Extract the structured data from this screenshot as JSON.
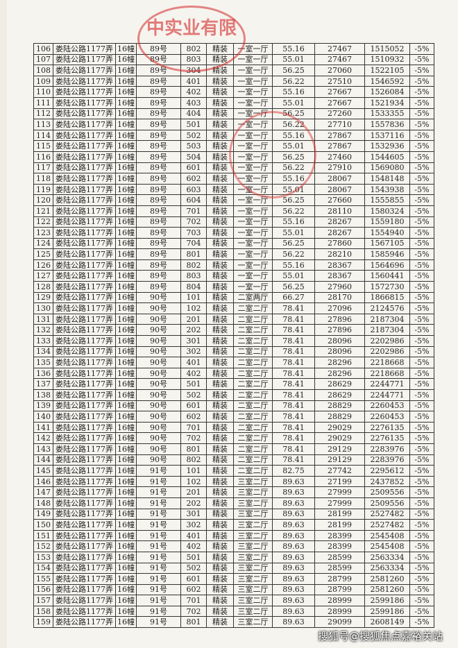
{
  "stamp": "中实业有限",
  "watermark": "搜狐号@搜狐焦点嘉裕关站",
  "table": {
    "rows": [
      [
        "106",
        "娄陆公路1177弄",
        "16幢",
        "89号",
        "802",
        "精装",
        "一室一厅",
        "55.16",
        "27467",
        "1515052",
        "-5%"
      ],
      [
        "107",
        "娄陆公路1177弄",
        "16幢",
        "89号",
        "803",
        "精装",
        "一室一厅",
        "55.01",
        "27467",
        "1510932",
        "-5%"
      ],
      [
        "108",
        "娄陆公路1177弄",
        "16幢",
        "89号",
        "304",
        "精装",
        "一室一厅",
        "56.25",
        "27060",
        "1522105",
        "-5%"
      ],
      [
        "109",
        "娄陆公路1177弄",
        "16幢",
        "89号",
        "401",
        "精装",
        "一室一厅",
        "56.22",
        "27510",
        "1546592",
        "-5%"
      ],
      [
        "110",
        "娄陆公路1177弄",
        "16幢",
        "89号",
        "402",
        "精装",
        "一室一厅",
        "55.16",
        "27667",
        "1526084",
        "-5%"
      ],
      [
        "111",
        "娄陆公路1177弄",
        "16幢",
        "89号",
        "403",
        "精装",
        "一室一厅",
        "55.01",
        "27667",
        "1521934",
        "-5%"
      ],
      [
        "112",
        "娄陆公路1177弄",
        "16幢",
        "89号",
        "404",
        "精装",
        "一室一厅",
        "56.25",
        "27260",
        "1533355",
        "-5%"
      ],
      [
        "113",
        "娄陆公路1177弄",
        "16幢",
        "89号",
        "501",
        "精装",
        "一室一厅",
        "56.22",
        "27710",
        "1557836",
        "-5%"
      ],
      [
        "114",
        "娄陆公路1177弄",
        "16幢",
        "89号",
        "502",
        "精装",
        "一室一厅",
        "55.16",
        "27867",
        "1537116",
        "-5%"
      ],
      [
        "115",
        "娄陆公路1177弄",
        "16幢",
        "89号",
        "503",
        "精装",
        "一室一厅",
        "55.01",
        "27867",
        "1532936",
        "-5%"
      ],
      [
        "116",
        "娄陆公路1177弄",
        "16幢",
        "89号",
        "504",
        "精装",
        "一室一厅",
        "56.25",
        "27460",
        "1544605",
        "-5%"
      ],
      [
        "117",
        "娄陆公路1177弄",
        "16幢",
        "89号",
        "601",
        "精装",
        "一室一厅",
        "56.22",
        "27910",
        "1569080",
        "-5%"
      ],
      [
        "118",
        "娄陆公路1177弄",
        "16幢",
        "89号",
        "602",
        "精装",
        "一室一厅",
        "55.16",
        "28067",
        "1548148",
        "-5%"
      ],
      [
        "119",
        "娄陆公路1177弄",
        "16幢",
        "89号",
        "603",
        "精装",
        "一室一厅",
        "55.01",
        "28067",
        "1543938",
        "-5%"
      ],
      [
        "120",
        "娄陆公路1177弄",
        "16幢",
        "89号",
        "604",
        "精装",
        "一室一厅",
        "56.25",
        "27660",
        "1555855",
        "-5%"
      ],
      [
        "121",
        "娄陆公路1177弄",
        "16幢",
        "89号",
        "701",
        "精装",
        "一室一厅",
        "56.22",
        "28110",
        "1580324",
        "-5%"
      ],
      [
        "122",
        "娄陆公路1177弄",
        "16幢",
        "89号",
        "702",
        "精装",
        "一室一厅",
        "55.16",
        "28267",
        "1559180",
        "-5%"
      ],
      [
        "123",
        "娄陆公路1177弄",
        "16幢",
        "89号",
        "703",
        "精装",
        "一室一厅",
        "55.01",
        "28267",
        "1554940",
        "-5%"
      ],
      [
        "124",
        "娄陆公路1177弄",
        "16幢",
        "89号",
        "704",
        "精装",
        "一室一厅",
        "56.25",
        "27860",
        "1567105",
        "-5%"
      ],
      [
        "125",
        "娄陆公路1177弄",
        "16幢",
        "89号",
        "801",
        "精装",
        "一室一厅",
        "56.22",
        "28210",
        "1585946",
        "-5%"
      ],
      [
        "126",
        "娄陆公路1177弄",
        "16幢",
        "89号",
        "802",
        "精装",
        "一室一厅",
        "55.16",
        "28367",
        "1564696",
        "-5%"
      ],
      [
        "127",
        "娄陆公路1177弄",
        "16幢",
        "89号",
        "803",
        "精装",
        "一室一厅",
        "55.01",
        "28367",
        "1560441",
        "-5%"
      ],
      [
        "128",
        "娄陆公路1177弄",
        "16幢",
        "89号",
        "804",
        "精装",
        "一室一厅",
        "56.25",
        "27960",
        "1572730",
        "-5%"
      ],
      [
        "129",
        "娄陆公路1177弄",
        "16幢",
        "90号",
        "101",
        "精装",
        "二室两厅",
        "66.27",
        "28170",
        "1866815",
        "-5%"
      ],
      [
        "130",
        "娄陆公路1177弄",
        "16幢",
        "90号",
        "102",
        "精装",
        "二室二厅",
        "78.41",
        "27096",
        "2124576",
        "-5%"
      ],
      [
        "131",
        "娄陆公路1177弄",
        "16幢",
        "90号",
        "201",
        "精装",
        "二室二厅",
        "78.41",
        "27896",
        "2187304",
        "-5%"
      ],
      [
        "132",
        "娄陆公路1177弄",
        "16幢",
        "90号",
        "202",
        "精装",
        "二室二厅",
        "78.41",
        "27896",
        "2187304",
        "-5%"
      ],
      [
        "133",
        "娄陆公路1177弄",
        "16幢",
        "90号",
        "301",
        "精装",
        "二室二厅",
        "78.41",
        "28096",
        "2202986",
        "-5%"
      ],
      [
        "134",
        "娄陆公路1177弄",
        "16幢",
        "90号",
        "302",
        "精装",
        "二室二厅",
        "78.41",
        "28096",
        "2202986",
        "-5%"
      ],
      [
        "135",
        "娄陆公路1177弄",
        "16幢",
        "90号",
        "401",
        "精装",
        "二室二厅",
        "78.41",
        "28296",
        "2218668",
        "-5%"
      ],
      [
        "136",
        "娄陆公路1177弄",
        "16幢",
        "90号",
        "402",
        "精装",
        "二室二厅",
        "78.41",
        "28296",
        "2218668",
        "-5%"
      ],
      [
        "137",
        "娄陆公路1177弄",
        "16幢",
        "90号",
        "501",
        "精装",
        "二室二厅",
        "78.41",
        "28629",
        "2244771",
        "-5%"
      ],
      [
        "138",
        "娄陆公路1177弄",
        "16幢",
        "90号",
        "502",
        "精装",
        "二室二厅",
        "78.41",
        "28629",
        "2244771",
        "-5%"
      ],
      [
        "139",
        "娄陆公路1177弄",
        "16幢",
        "90号",
        "601",
        "精装",
        "二室二厅",
        "78.41",
        "28829",
        "2260453",
        "-5%"
      ],
      [
        "140",
        "娄陆公路1177弄",
        "16幢",
        "90号",
        "602",
        "精装",
        "二室二厅",
        "78.41",
        "28829",
        "2260453",
        "-5%"
      ],
      [
        "141",
        "娄陆公路1177弄",
        "16幢",
        "90号",
        "701",
        "精装",
        "二室二厅",
        "78.41",
        "29029",
        "2276135",
        "-5%"
      ],
      [
        "142",
        "娄陆公路1177弄",
        "16幢",
        "90号",
        "702",
        "精装",
        "二室二厅",
        "78.41",
        "29029",
        "2276135",
        "-5%"
      ],
      [
        "143",
        "娄陆公路1177弄",
        "16幢",
        "90号",
        "801",
        "精装",
        "二室二厅",
        "78.41",
        "29129",
        "2283976",
        "-5%"
      ],
      [
        "144",
        "娄陆公路1177弄",
        "16幢",
        "90号",
        "802",
        "精装",
        "二室二厅",
        "78.41",
        "29129",
        "2283976",
        "-5%"
      ],
      [
        "145",
        "娄陆公路1177弄",
        "16幢",
        "91号",
        "101",
        "精装",
        "二室二厅",
        "82.75",
        "27742",
        "2295612",
        "-5%"
      ],
      [
        "146",
        "娄陆公路1177弄",
        "16幢",
        "91号",
        "102",
        "精装",
        "三室二厅",
        "89.63",
        "27199",
        "2437852",
        "-5%"
      ],
      [
        "147",
        "娄陆公路1177弄",
        "16幢",
        "91号",
        "201",
        "精装",
        "三室二厅",
        "89.63",
        "27999",
        "2509556",
        "-5%"
      ],
      [
        "148",
        "娄陆公路1177弄",
        "16幢",
        "91号",
        "202",
        "精装",
        "三室二厅",
        "89.63",
        "27999",
        "2509556",
        "-5%"
      ],
      [
        "149",
        "娄陆公路1177弄",
        "16幢",
        "91号",
        "301",
        "精装",
        "三室二厅",
        "89.63",
        "28199",
        "2527482",
        "-5%"
      ],
      [
        "150",
        "娄陆公路1177弄",
        "16幢",
        "91号",
        "302",
        "精装",
        "三室二厅",
        "89.63",
        "28199",
        "2527482",
        "-5%"
      ],
      [
        "151",
        "娄陆公路1177弄",
        "16幢",
        "91号",
        "401",
        "精装",
        "三室二厅",
        "89.63",
        "28399",
        "2545408",
        "-5%"
      ],
      [
        "152",
        "娄陆公路1177弄",
        "16幢",
        "91号",
        "402",
        "精装",
        "三室二厅",
        "89.63",
        "28399",
        "2545408",
        "-5%"
      ],
      [
        "153",
        "娄陆公路1177弄",
        "16幢",
        "91号",
        "501",
        "精装",
        "三室二厅",
        "89.63",
        "28599",
        "2563334",
        "-5%"
      ],
      [
        "154",
        "娄陆公路1177弄",
        "16幢",
        "91号",
        "502",
        "精装",
        "三室二厅",
        "89.63",
        "28599",
        "2563334",
        "-5%"
      ],
      [
        "155",
        "娄陆公路1177弄",
        "16幢",
        "91号",
        "601",
        "精装",
        "三室二厅",
        "89.63",
        "28799",
        "2581260",
        "-5%"
      ],
      [
        "156",
        "娄陆公路1177弄",
        "16幢",
        "91号",
        "602",
        "精装",
        "三室二厅",
        "89.63",
        "28799",
        "2581260",
        "-5%"
      ],
      [
        "157",
        "娄陆公路1177弄",
        "16幢",
        "91号",
        "701",
        "精装",
        "三室二厅",
        "89.63",
        "28999",
        "2599186",
        "-5%"
      ],
      [
        "158",
        "娄陆公路1177弄",
        "16幢",
        "91号",
        "702",
        "精装",
        "三室二厅",
        "89.63",
        "28999",
        "2599186",
        "-5%"
      ],
      [
        "159",
        "娄陆公路1177弄",
        "16幢",
        "91号",
        "801",
        "精装",
        "三室二厅",
        "89.63",
        "29099",
        "2608149",
        "-5%"
      ]
    ]
  }
}
